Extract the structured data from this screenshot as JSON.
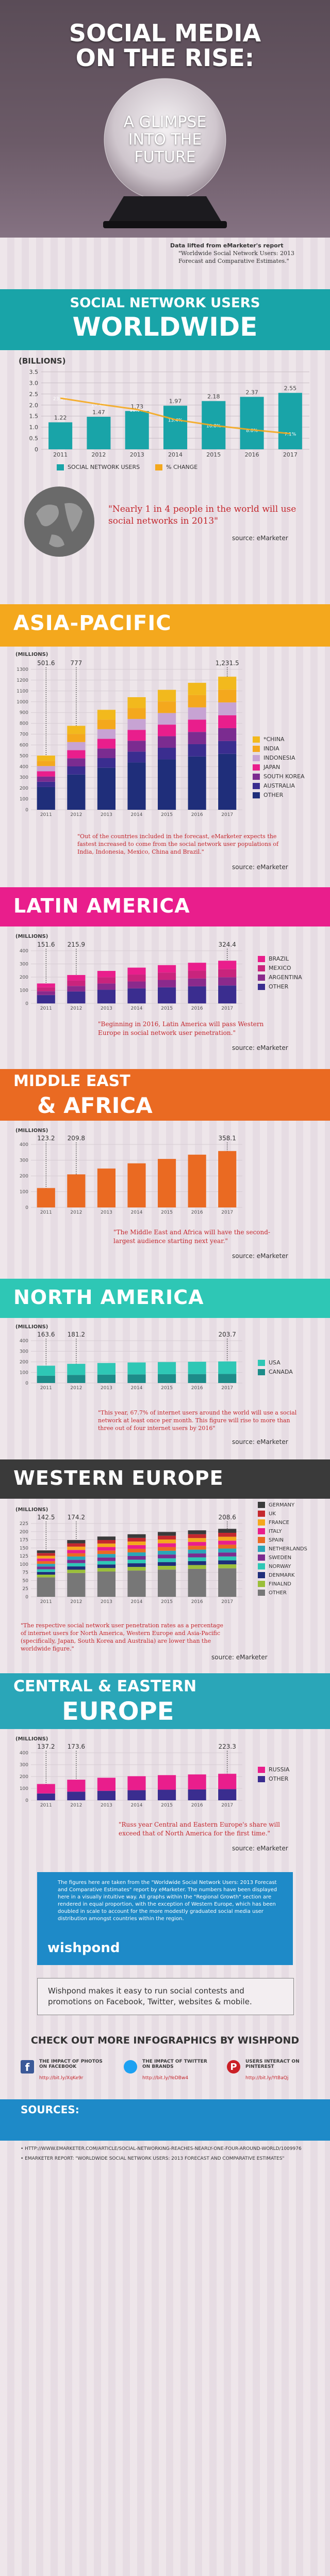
{
  "hero": {
    "title_line1": "SOCIAL MEDIA",
    "title_line2": "ON THE RISE:",
    "glimpse": [
      "A GLIMPSE",
      "INTO THE",
      "FUTURE"
    ],
    "data_note": "Data lifted from eMarketer's report",
    "report": "\"Worldwide Social Network Users: 2013 Forecast and Comparative Estimates.\""
  },
  "world": {
    "title_line1": "SOCIAL NETWORK USERS",
    "title_line2": "WORLDWIDE",
    "unit": "(BILLIONS)",
    "legend_bars": "SOCIAL NETWORK USERS",
    "legend_line": "% CHANGE",
    "quote": "\"Nearly 1 in 4 people in the world will use social networks in 2013\"",
    "source": "source: eMarketer"
  },
  "asia": {
    "title": "ASIA-PACIFIC",
    "unit": "(MILLIONS)",
    "quote": "\"Out of the countries included in the forecast, eMarketer expects the fastest increased to come from the social network user populations of India, Indonesia, Mexico, China and Brazil.\"",
    "source": "source: eMarketer"
  },
  "latam": {
    "title": "LATIN AMERICA",
    "unit": "(MILLIONS)",
    "quote": "\"Beginning in 2016, Latin America will pass Western Europe in social network user penetration.\"",
    "source": "source: eMarketer"
  },
  "mea": {
    "title_line1": "MIDDLE EAST",
    "title_line2": "& AFRICA",
    "unit": "(MILLIONS)",
    "quote": "\"The Middle East and Africa will have the second-largest audience starting next year.\"",
    "source": "source: eMarketer"
  },
  "na": {
    "title": "NORTH AMERICA",
    "unit": "(MILLIONS)",
    "quote": "\"This year, 67.7% of internet users around the world will use a social network at least once per month. This figure will rise to more than three out of four internet users by 2016\"",
    "source": "source: eMarketer"
  },
  "we": {
    "title": "WESTERN EUROPE",
    "unit": "(MILLIONS)",
    "quote": "\"The respective social network user penetration rates as a percentage of internet users for North America, Western Europe and Asia-Pacific (specifically, Japan, South Korea and Australia) are lower than the worldwide figure.\"",
    "source": "source: eMarketer"
  },
  "cee": {
    "title_line1": "CENTRAL & EASTERN",
    "title_line2": "EUROPE",
    "unit": "(MILLIONS)",
    "quote": "\"Russ year Central and Eastern Europe's share will exceed that of North America for the first time.\"",
    "source": "source: eMarketer"
  },
  "note": {
    "text": "The figures here are taken from the \"Worldwide Social Network Users: 2013 Forecast and Comparative Estimates\" report by eMarketer. The numbers have been displayed here in a visually intuitive way. All graphs within the \"Regional Growth\" section are rendered in equal proportion, with the exception of Western Europe, which has been doubled in scale to account for the more modestly graduated social media user distribution amongst countries within the region.",
    "brand": "wishpond"
  },
  "promo": "Wishpond makes it easy to run social contests and promotions on Facebook, Twitter, websites & mobile.",
  "more": {
    "title": "CHECK OUT MORE INFOGRAPHICS BY WISHPOND",
    "items": [
      {
        "label": "THE IMPACT OF PHOTOS ON FACEBOOK",
        "link": "http://bit.ly/XqKe9r"
      },
      {
        "label": "THE IMPACT OF TWITTER ON BRANDS",
        "link": "http://bit.ly/YeDBw4"
      },
      {
        "label": "USERS INTERACT ON PINTEREST",
        "link": "http://bit.ly/YtBaQj"
      }
    ]
  },
  "sources": {
    "title": "SOURCES:",
    "items": [
      "HTTP://WWW.EMARKETER.COM/ARTICLE/SOCIAL-NETWORKING-REACHES-NEARLY-ONE-FOUR-AROUND-WORLD/1009976",
      "EMARKETER REPORT: \"WORLDWIDE SOCIAL NETWORK USERS: 2013 FORECAST AND COMPARATIVE ESTIMATES\""
    ]
  },
  "colors": {
    "teal": "#19a4a8",
    "orange": "#f08a24",
    "asia": "#f4a81d",
    "latam": "#e91e8c",
    "mea": "#ea6a22",
    "na": "#2ec7b5",
    "we": "#3a3a3a",
    "cee": "#2aa6b8",
    "dark": "#2c2c2c"
  },
  "chart_data": [
    {
      "type": "bar",
      "region": "worldwide",
      "categories": [
        "2011",
        "2012",
        "2013",
        "2014",
        "2015",
        "2016",
        "2017"
      ],
      "series": [
        {
          "name": "SOCIAL NETWORK USERS",
          "values": [
            1.22,
            1.47,
            1.73,
            1.97,
            2.18,
            2.37,
            2.55
          ]
        },
        {
          "name": "% CHANGE",
          "values": [
            23.1,
            20.4,
            18.0,
            13.4,
            10.8,
            8.8,
            7.1
          ]
        }
      ],
      "value_labels": [
        "1.22",
        "1.47",
        "1.73",
        "1.97",
        "2.18",
        "2.37",
        "2.55"
      ],
      "yticks": [
        "0",
        "0.5",
        "1.0",
        "1.5",
        "2.0",
        "2.5",
        "3.0",
        "3.5"
      ],
      "ylim": [
        0,
        3.5
      ]
    },
    {
      "type": "bar",
      "region": "asia",
      "stacked": true,
      "categories": [
        "2011",
        "2012",
        "2013",
        "2014",
        "2015",
        "2016",
        "2017"
      ],
      "labels": {
        "2011": "501.6",
        "2012": "777",
        "2017": "1,231.5"
      },
      "totals": [
        501.6,
        777,
        925,
        1042,
        1110,
        1175,
        1231.5
      ],
      "legend": [
        "*CHINA",
        "INDIA",
        "INDONESIA",
        "JAPAN",
        "SOUTH KOREA",
        "AUSTRALIA",
        "OTHER"
      ],
      "legend_colors": [
        "#f2b91d",
        "#f4a81d",
        "#c7a3d3",
        "#e91e8c",
        "#7b2c90",
        "#3a2d8f",
        "#1f2e7a"
      ],
      "yticks": [
        "0",
        "100",
        "200",
        "300",
        "400",
        "500",
        "600",
        "700",
        "800",
        "900",
        "1000",
        "1100",
        "1200",
        "1300"
      ],
      "ylim": [
        0,
        1300
      ]
    },
    {
      "type": "bar",
      "region": "latam",
      "stacked": true,
      "categories": [
        "2011",
        "2012",
        "2013",
        "2014",
        "2015",
        "2016",
        "2017"
      ],
      "labels": {
        "2011": "151.6",
        "2012": "215.9",
        "2017": "324.4"
      },
      "totals": [
        151.6,
        215.9,
        247,
        272,
        291,
        309,
        324.4
      ],
      "legend": [
        "BRAZIL",
        "MEXICO",
        "ARGENTINA",
        "OTHER"
      ],
      "legend_colors": [
        "#e91e8c",
        "#c9247d",
        "#8a2a8c",
        "#3a2d8f"
      ],
      "yticks": [
        "0",
        "100",
        "200",
        "300",
        "400"
      ],
      "ylim": [
        0,
        400
      ]
    },
    {
      "type": "bar",
      "region": "mea",
      "categories": [
        "2011",
        "2012",
        "2013",
        "2014",
        "2015",
        "2016",
        "2017"
      ],
      "labels": {
        "2011": "123.2",
        "2012": "209.8",
        "2017": "358.1"
      },
      "totals": [
        123.2,
        209.8,
        247,
        280,
        308,
        335,
        358.1
      ],
      "yticks": [
        "0",
        "100",
        "200",
        "300",
        "400"
      ],
      "ylim": [
        0,
        400
      ]
    },
    {
      "type": "bar",
      "region": "na",
      "stacked": true,
      "categories": [
        "2011",
        "2012",
        "2013",
        "2014",
        "2015",
        "2016",
        "2017"
      ],
      "labels": {
        "2011": "163.6",
        "2012": "181.2",
        "2017": "203.7"
      },
      "totals": [
        163.6,
        181.2,
        189,
        194,
        198,
        201,
        203.7
      ],
      "legend": [
        "USA",
        "CANADA"
      ],
      "legend_colors": [
        "#2ec7b5",
        "#1d8c89"
      ],
      "yticks": [
        "0",
        "100",
        "200",
        "300",
        "400"
      ],
      "ylim": [
        0,
        400
      ]
    },
    {
      "type": "bar",
      "region": "we",
      "stacked": true,
      "categories": [
        "2011",
        "2012",
        "2013",
        "2014",
        "2015",
        "2016",
        "2017"
      ],
      "labels": {
        "2011": "142.5",
        "2012": "174.2",
        "2017": "208.6"
      },
      "totals": [
        142.5,
        174.2,
        185,
        192,
        199,
        204,
        208.6
      ],
      "legend": [
        "GERMANY",
        "UK",
        "FRANCE",
        "ITALY",
        "SPAIN",
        "NETHERLANDS",
        "SWEDEN",
        "NORWAY",
        "DENMARK",
        "FINALND",
        "OTHER"
      ],
      "legend_colors": [
        "#3a3a3a",
        "#c4282e",
        "#f4a81d",
        "#e91e8c",
        "#ea6a22",
        "#2aa6b8",
        "#7b2c90",
        "#2ec7b5",
        "#1f2e7a",
        "#9bbf3a",
        "#777777"
      ],
      "yticks": [
        "0",
        "25",
        "50",
        "75",
        "100",
        "125",
        "150",
        "175",
        "200",
        "225"
      ],
      "ylim": [
        0,
        225
      ]
    },
    {
      "type": "bar",
      "region": "cee",
      "stacked": true,
      "categories": [
        "2011",
        "2012",
        "2013",
        "2014",
        "2015",
        "2016",
        "2017"
      ],
      "labels": {
        "2011": "137.2",
        "2012": "173.6",
        "2017": "223.3"
      },
      "totals": [
        137.2,
        173.6,
        190,
        203,
        212,
        218,
        223.3
      ],
      "legend": [
        "RUSSIA",
        "OTHER"
      ],
      "legend_colors": [
        "#e91e8c",
        "#3a2d8f"
      ],
      "yticks": [
        "0",
        "100",
        "200",
        "300",
        "400"
      ],
      "ylim": [
        0,
        400
      ]
    }
  ]
}
